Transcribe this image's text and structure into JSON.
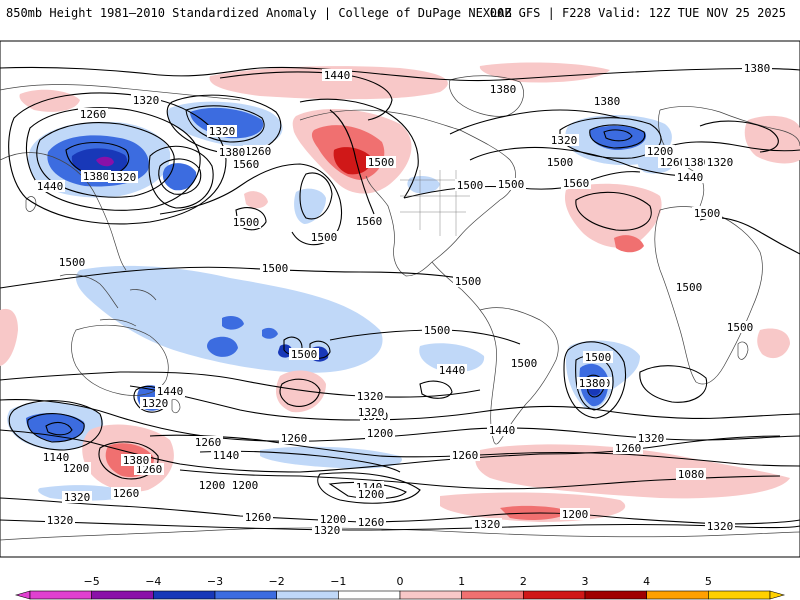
{
  "header": {
    "left": "850mb Height 1981–2010 Standardized Anomaly | College of DuPage NEXLAB",
    "right": "00Z GFS | F228 Valid: 12Z TUE NOV 25 2025"
  },
  "contour_labels": [
    "1440",
    "1380",
    "1380",
    "1380",
    "1320",
    "1260",
    "1320",
    "1260",
    "1380",
    "1320",
    "1440",
    "1380",
    "1320",
    "1500",
    "1200",
    "1260",
    "1380",
    "1320",
    "1440",
    "1500",
    "1560",
    "1500",
    "1500",
    "1560",
    "1560",
    "1500",
    "1500",
    "1500",
    "1500",
    "1500",
    "1500",
    "1500",
    "1500",
    "1500",
    "1500",
    "1500",
    "1380",
    "1440",
    "1320",
    "1260",
    "1140",
    "1200",
    "1260",
    "1380",
    "1320",
    "1260",
    "1380",
    "1320",
    "1200",
    "1260",
    "1320",
    "1260",
    "1440",
    "1320",
    "1200",
    "1140",
    "1200",
    "1260",
    "1080",
    "1140",
    "1200",
    "1260",
    "1200",
    "1320",
    "1320",
    "1260",
    "1320",
    "1200",
    "1320",
    "1320",
    "1500",
    "1440"
  ],
  "colorbar": {
    "ticks": [
      "−5",
      "−4",
      "−3",
      "−2",
      "−1",
      "0",
      "1",
      "2",
      "3",
      "4",
      "5"
    ],
    "colors": [
      "#e040d0",
      "#8a10a8",
      "#1838b8",
      "#3c6ce0",
      "#c0d8f8",
      "#ffffff",
      "#f8c8c8",
      "#f07070",
      "#d01818",
      "#a00000",
      "#ffa000",
      "#ffd000"
    ]
  }
}
